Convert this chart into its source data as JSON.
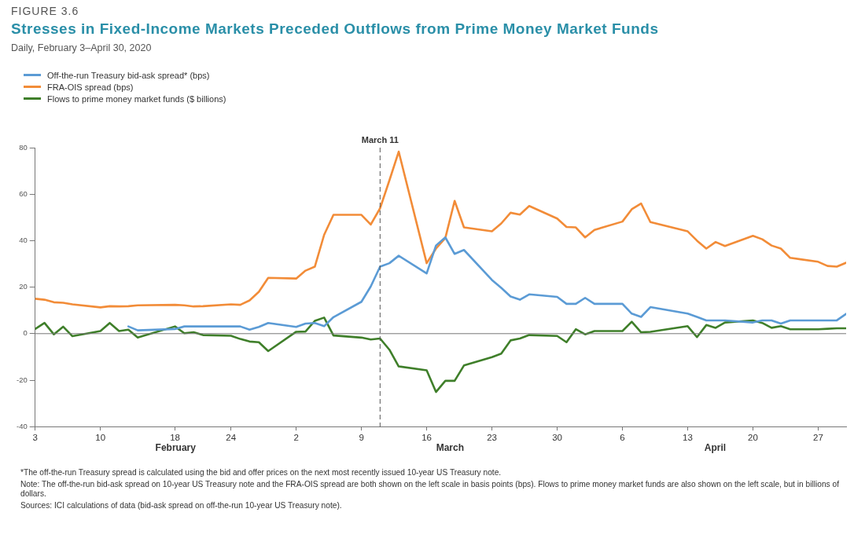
{
  "chart_data": {
    "type": "line",
    "title": "Stresses in Fixed-Income Markets Preceded Outflows from Prime Money Market Funds",
    "subtitle": "Daily, February 3–April 30, 2020",
    "x": [
      "2020-02-03",
      "2020-02-04",
      "2020-02-05",
      "2020-02-06",
      "2020-02-07",
      "2020-02-10",
      "2020-02-11",
      "2020-02-12",
      "2020-02-13",
      "2020-02-14",
      "2020-02-18",
      "2020-02-19",
      "2020-02-20",
      "2020-02-21",
      "2020-02-24",
      "2020-02-25",
      "2020-02-26",
      "2020-02-27",
      "2020-02-28",
      "2020-03-02",
      "2020-03-03",
      "2020-03-04",
      "2020-03-05",
      "2020-03-06",
      "2020-03-09",
      "2020-03-10",
      "2020-03-11",
      "2020-03-12",
      "2020-03-13",
      "2020-03-16",
      "2020-03-17",
      "2020-03-18",
      "2020-03-19",
      "2020-03-20",
      "2020-03-23",
      "2020-03-24",
      "2020-03-25",
      "2020-03-26",
      "2020-03-27",
      "2020-03-30",
      "2020-03-31",
      "2020-04-01",
      "2020-04-02",
      "2020-04-03",
      "2020-04-06",
      "2020-04-07",
      "2020-04-08",
      "2020-04-09",
      "2020-04-13",
      "2020-04-14",
      "2020-04-15",
      "2020-04-16",
      "2020-04-17",
      "2020-04-20",
      "2020-04-21",
      "2020-04-22",
      "2020-04-23",
      "2020-04-24",
      "2020-04-27",
      "2020-04-28",
      "2020-04-29",
      "2020-04-30"
    ],
    "series": [
      {
        "name": "Off-the-run Treasury bid-ask spread* (bps)",
        "color": "#5b9bd5",
        "values": [
          null,
          null,
          null,
          null,
          null,
          null,
          null,
          null,
          3.1,
          1.4,
          2,
          3.1,
          3.1,
          3.1,
          3.1,
          3.1,
          1.7,
          2.9,
          4.6,
          2.9,
          4.3,
          4.6,
          3.2,
          7.1,
          13.7,
          20.3,
          28.8,
          30.3,
          33.5,
          25.9,
          37.9,
          41.4,
          34.3,
          36,
          23.1,
          19.7,
          16,
          14.6,
          16.9,
          15.8,
          12.8,
          12.8,
          15.4,
          12.8,
          12.8,
          8.6,
          7.2,
          11.4,
          8.6,
          7.2,
          5.7,
          5.7,
          5.7,
          4.8,
          5.7,
          5.7,
          4.3,
          5.7,
          5.7,
          5.7,
          5.7,
          8.5
        ]
      },
      {
        "name": "FRA-OIS spread (bps)",
        "color": "#f28c38",
        "values": [
          15,
          14.6,
          13.5,
          13.3,
          12.6,
          11.3,
          11.8,
          11.7,
          11.8,
          12.2,
          12.4,
          12.2,
          11.7,
          11.8,
          12.6,
          12.4,
          14.3,
          18,
          24,
          23.7,
          27.1,
          28.8,
          42.5,
          51.1,
          51.1,
          46.9,
          53.9,
          65.9,
          78.3,
          30.3,
          36.6,
          41.1,
          57.1,
          45.7,
          44,
          47.4,
          52,
          51.2,
          54.9,
          49.5,
          45.9,
          45.7,
          41.4,
          44.6,
          48.2,
          53.5,
          56,
          48,
          44,
          40,
          36.6,
          39.4,
          37.7,
          42.1,
          40.6,
          37.9,
          36.6,
          32.6,
          30.9,
          29.1,
          28.8,
          30.5
        ]
      },
      {
        "name": "Flows to prime money market funds ($ billions)",
        "color": "#3f7f2a",
        "values": [
          2,
          4.6,
          -0.3,
          3,
          -1.1,
          1.1,
          4.6,
          1.1,
          1.7,
          -1.7,
          3.1,
          0.2,
          0.6,
          -0.6,
          -0.9,
          -2.3,
          -3.4,
          -3.7,
          -7.5,
          0.8,
          0.9,
          5.5,
          6.9,
          -0.8,
          -1.7,
          -2.5,
          -2.1,
          -6.9,
          -14.1,
          -15.8,
          -25.1,
          -20.3,
          -20.3,
          -13.7,
          -10.1,
          -8.6,
          -2.9,
          -2.1,
          -0.6,
          -1,
          -3.7,
          1.9,
          -0.3,
          1.1,
          1.1,
          5.1,
          0.6,
          0.8,
          3.2,
          -1.5,
          3.7,
          2.5,
          4.8,
          5.7,
          4.6,
          2.5,
          3.2,
          1.9,
          1.9,
          2.1,
          2.3,
          2.3
        ]
      }
    ],
    "xlim": [
      "2020-02-03",
      "2020-04-30"
    ],
    "xticks": [
      {
        "value": "2020-02-03",
        "label": "3"
      },
      {
        "value": "2020-02-10",
        "label": "10"
      },
      {
        "value": "2020-02-18",
        "label": "18"
      },
      {
        "value": "2020-02-24",
        "label": "24"
      },
      {
        "value": "2020-03-02",
        "label": "2"
      },
      {
        "value": "2020-03-09",
        "label": "9"
      },
      {
        "value": "2020-03-16",
        "label": "16"
      },
      {
        "value": "2020-03-23",
        "label": "23"
      },
      {
        "value": "2020-03-30",
        "label": "30"
      },
      {
        "value": "2020-04-06",
        "label": "6"
      },
      {
        "value": "2020-04-13",
        "label": "13"
      },
      {
        "value": "2020-04-20",
        "label": "20"
      },
      {
        "value": "2020-04-27",
        "label": "27"
      }
    ],
    "ylim": [
      -40,
      80
    ],
    "yticks": [
      -40,
      -20,
      0,
      20,
      40,
      60,
      80
    ],
    "ref_lines": [
      {
        "axis": "x",
        "value": "2020-03-11",
        "label": "March 11",
        "color": "#555555",
        "line_style": "dashed"
      },
      {
        "axis": "y",
        "value": 0,
        "color": "#777777",
        "line_style": "solid"
      }
    ],
    "annotations": [
      "FIGURE 3.6",
      "February",
      "March",
      "April",
      "*The off-the-run Treasury spread is calculated using the bid and offer prices on the next most recently issued 10-year US Treasury note.",
      "Note: The off-the-run bid-ask spread on 10-year US Treasury note and the FRA-OIS spread are both shown on the left scale in basis points (bps). Flows to prime money market funds are also shown on the left scale, but in billions of dollars.",
      "Sources: ICI calculations of data (bid-ask spread on off-the-run 10-year US Treasury note)."
    ],
    "grid": false,
    "legend": "top left",
    "marker": "none",
    "line_style": "solid"
  }
}
